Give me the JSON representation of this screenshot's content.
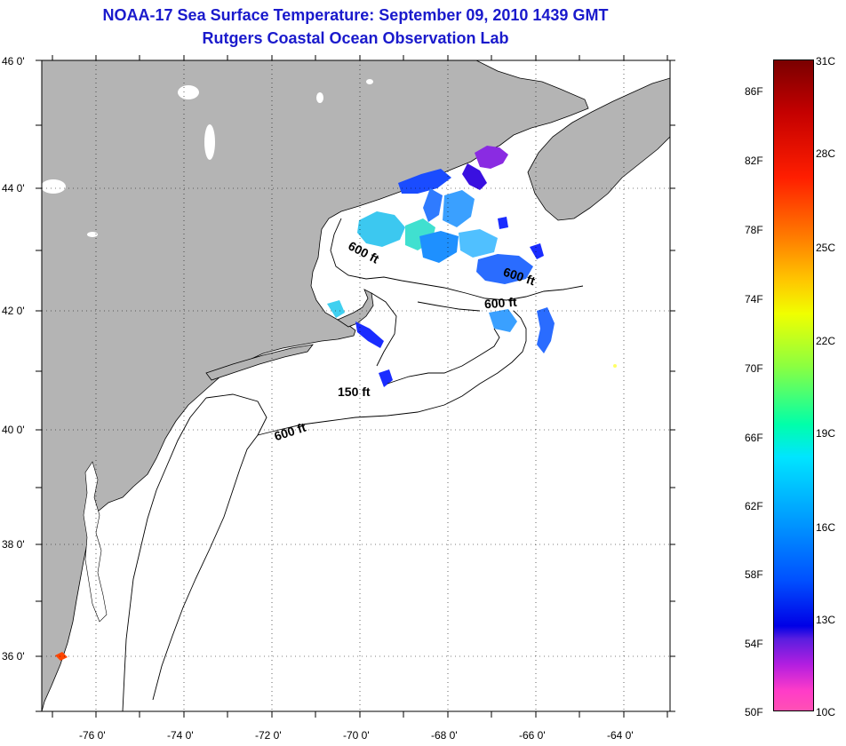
{
  "title_line1": "NOAA-17 Sea Surface Temperature:  September 09, 2010 1439 GMT",
  "title_line2": "Rutgers Coastal Ocean Observation Lab",
  "latitude_labels": [
    "46 0'",
    "44 0'",
    "42 0'",
    "40 0'",
    "38 0'",
    "36 0'"
  ],
  "longitude_labels": [
    "-76 0'",
    "-74 0'",
    "-72 0'",
    "-70 0'",
    "-68 0'",
    "-66 0'",
    "-64 0'"
  ],
  "depth_labels": [
    "600 ft",
    "600 ft",
    "600 ft",
    "150 ft",
    "600 ft"
  ],
  "colorbar": {
    "fahrenheit_labels": [
      "86F",
      "82F",
      "78F",
      "74F",
      "70F",
      "66F",
      "62F",
      "58F",
      "54F",
      "50F"
    ],
    "celsius_labels": [
      "31C",
      "28C",
      "25C",
      "22C",
      "19C",
      "16C",
      "13C",
      "10C"
    ]
  },
  "colors": {
    "land": "#b4b4b4",
    "title": "#1a1acc",
    "ocean": "#ffffff"
  }
}
